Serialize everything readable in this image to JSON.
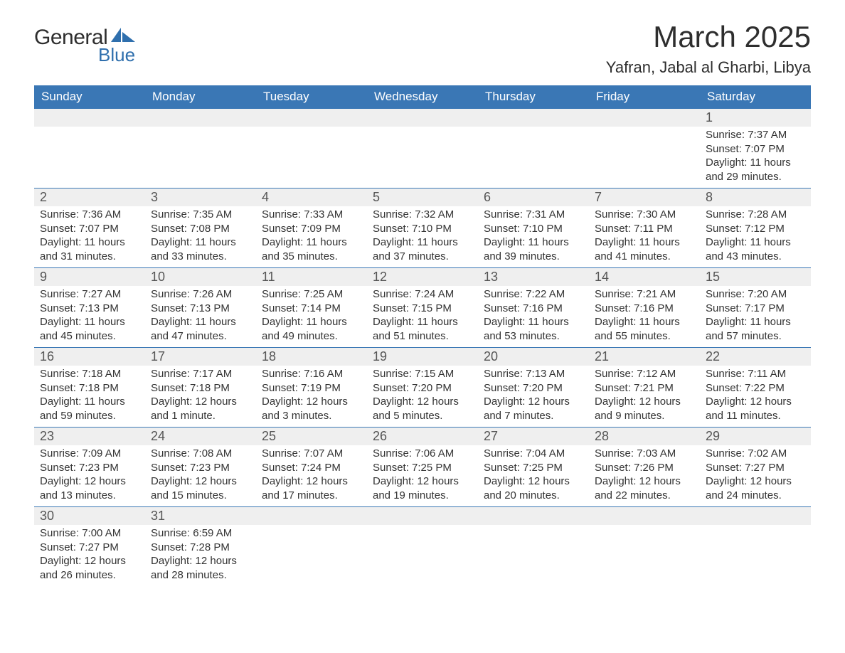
{
  "logo": {
    "top": "General",
    "bottom": "Blue",
    "shape_color": "#2f6fad"
  },
  "title": "March 2025",
  "location": "Yafran, Jabal al Gharbi, Libya",
  "header_bg": "#3a77b5",
  "header_fg": "#ffffff",
  "daynum_bg": "#efefef",
  "row_border": "#3a77b5",
  "weekdays": [
    "Sunday",
    "Monday",
    "Tuesday",
    "Wednesday",
    "Thursday",
    "Friday",
    "Saturday"
  ],
  "weeks": [
    [
      null,
      null,
      null,
      null,
      null,
      null,
      {
        "day": "1",
        "sunrise": "Sunrise: 7:37 AM",
        "sunset": "Sunset: 7:07 PM",
        "daylight1": "Daylight: 11 hours",
        "daylight2": "and 29 minutes."
      }
    ],
    [
      {
        "day": "2",
        "sunrise": "Sunrise: 7:36 AM",
        "sunset": "Sunset: 7:07 PM",
        "daylight1": "Daylight: 11 hours",
        "daylight2": "and 31 minutes."
      },
      {
        "day": "3",
        "sunrise": "Sunrise: 7:35 AM",
        "sunset": "Sunset: 7:08 PM",
        "daylight1": "Daylight: 11 hours",
        "daylight2": "and 33 minutes."
      },
      {
        "day": "4",
        "sunrise": "Sunrise: 7:33 AM",
        "sunset": "Sunset: 7:09 PM",
        "daylight1": "Daylight: 11 hours",
        "daylight2": "and 35 minutes."
      },
      {
        "day": "5",
        "sunrise": "Sunrise: 7:32 AM",
        "sunset": "Sunset: 7:10 PM",
        "daylight1": "Daylight: 11 hours",
        "daylight2": "and 37 minutes."
      },
      {
        "day": "6",
        "sunrise": "Sunrise: 7:31 AM",
        "sunset": "Sunset: 7:10 PM",
        "daylight1": "Daylight: 11 hours",
        "daylight2": "and 39 minutes."
      },
      {
        "day": "7",
        "sunrise": "Sunrise: 7:30 AM",
        "sunset": "Sunset: 7:11 PM",
        "daylight1": "Daylight: 11 hours",
        "daylight2": "and 41 minutes."
      },
      {
        "day": "8",
        "sunrise": "Sunrise: 7:28 AM",
        "sunset": "Sunset: 7:12 PM",
        "daylight1": "Daylight: 11 hours",
        "daylight2": "and 43 minutes."
      }
    ],
    [
      {
        "day": "9",
        "sunrise": "Sunrise: 7:27 AM",
        "sunset": "Sunset: 7:13 PM",
        "daylight1": "Daylight: 11 hours",
        "daylight2": "and 45 minutes."
      },
      {
        "day": "10",
        "sunrise": "Sunrise: 7:26 AM",
        "sunset": "Sunset: 7:13 PM",
        "daylight1": "Daylight: 11 hours",
        "daylight2": "and 47 minutes."
      },
      {
        "day": "11",
        "sunrise": "Sunrise: 7:25 AM",
        "sunset": "Sunset: 7:14 PM",
        "daylight1": "Daylight: 11 hours",
        "daylight2": "and 49 minutes."
      },
      {
        "day": "12",
        "sunrise": "Sunrise: 7:24 AM",
        "sunset": "Sunset: 7:15 PM",
        "daylight1": "Daylight: 11 hours",
        "daylight2": "and 51 minutes."
      },
      {
        "day": "13",
        "sunrise": "Sunrise: 7:22 AM",
        "sunset": "Sunset: 7:16 PM",
        "daylight1": "Daylight: 11 hours",
        "daylight2": "and 53 minutes."
      },
      {
        "day": "14",
        "sunrise": "Sunrise: 7:21 AM",
        "sunset": "Sunset: 7:16 PM",
        "daylight1": "Daylight: 11 hours",
        "daylight2": "and 55 minutes."
      },
      {
        "day": "15",
        "sunrise": "Sunrise: 7:20 AM",
        "sunset": "Sunset: 7:17 PM",
        "daylight1": "Daylight: 11 hours",
        "daylight2": "and 57 minutes."
      }
    ],
    [
      {
        "day": "16",
        "sunrise": "Sunrise: 7:18 AM",
        "sunset": "Sunset: 7:18 PM",
        "daylight1": "Daylight: 11 hours",
        "daylight2": "and 59 minutes."
      },
      {
        "day": "17",
        "sunrise": "Sunrise: 7:17 AM",
        "sunset": "Sunset: 7:18 PM",
        "daylight1": "Daylight: 12 hours",
        "daylight2": "and 1 minute."
      },
      {
        "day": "18",
        "sunrise": "Sunrise: 7:16 AM",
        "sunset": "Sunset: 7:19 PM",
        "daylight1": "Daylight: 12 hours",
        "daylight2": "and 3 minutes."
      },
      {
        "day": "19",
        "sunrise": "Sunrise: 7:15 AM",
        "sunset": "Sunset: 7:20 PM",
        "daylight1": "Daylight: 12 hours",
        "daylight2": "and 5 minutes."
      },
      {
        "day": "20",
        "sunrise": "Sunrise: 7:13 AM",
        "sunset": "Sunset: 7:20 PM",
        "daylight1": "Daylight: 12 hours",
        "daylight2": "and 7 minutes."
      },
      {
        "day": "21",
        "sunrise": "Sunrise: 7:12 AM",
        "sunset": "Sunset: 7:21 PM",
        "daylight1": "Daylight: 12 hours",
        "daylight2": "and 9 minutes."
      },
      {
        "day": "22",
        "sunrise": "Sunrise: 7:11 AM",
        "sunset": "Sunset: 7:22 PM",
        "daylight1": "Daylight: 12 hours",
        "daylight2": "and 11 minutes."
      }
    ],
    [
      {
        "day": "23",
        "sunrise": "Sunrise: 7:09 AM",
        "sunset": "Sunset: 7:23 PM",
        "daylight1": "Daylight: 12 hours",
        "daylight2": "and 13 minutes."
      },
      {
        "day": "24",
        "sunrise": "Sunrise: 7:08 AM",
        "sunset": "Sunset: 7:23 PM",
        "daylight1": "Daylight: 12 hours",
        "daylight2": "and 15 minutes."
      },
      {
        "day": "25",
        "sunrise": "Sunrise: 7:07 AM",
        "sunset": "Sunset: 7:24 PM",
        "daylight1": "Daylight: 12 hours",
        "daylight2": "and 17 minutes."
      },
      {
        "day": "26",
        "sunrise": "Sunrise: 7:06 AM",
        "sunset": "Sunset: 7:25 PM",
        "daylight1": "Daylight: 12 hours",
        "daylight2": "and 19 minutes."
      },
      {
        "day": "27",
        "sunrise": "Sunrise: 7:04 AM",
        "sunset": "Sunset: 7:25 PM",
        "daylight1": "Daylight: 12 hours",
        "daylight2": "and 20 minutes."
      },
      {
        "day": "28",
        "sunrise": "Sunrise: 7:03 AM",
        "sunset": "Sunset: 7:26 PM",
        "daylight1": "Daylight: 12 hours",
        "daylight2": "and 22 minutes."
      },
      {
        "day": "29",
        "sunrise": "Sunrise: 7:02 AM",
        "sunset": "Sunset: 7:27 PM",
        "daylight1": "Daylight: 12 hours",
        "daylight2": "and 24 minutes."
      }
    ],
    [
      {
        "day": "30",
        "sunrise": "Sunrise: 7:00 AM",
        "sunset": "Sunset: 7:27 PM",
        "daylight1": "Daylight: 12 hours",
        "daylight2": "and 26 minutes."
      },
      {
        "day": "31",
        "sunrise": "Sunrise: 6:59 AM",
        "sunset": "Sunset: 7:28 PM",
        "daylight1": "Daylight: 12 hours",
        "daylight2": "and 28 minutes."
      },
      null,
      null,
      null,
      null,
      null
    ]
  ]
}
